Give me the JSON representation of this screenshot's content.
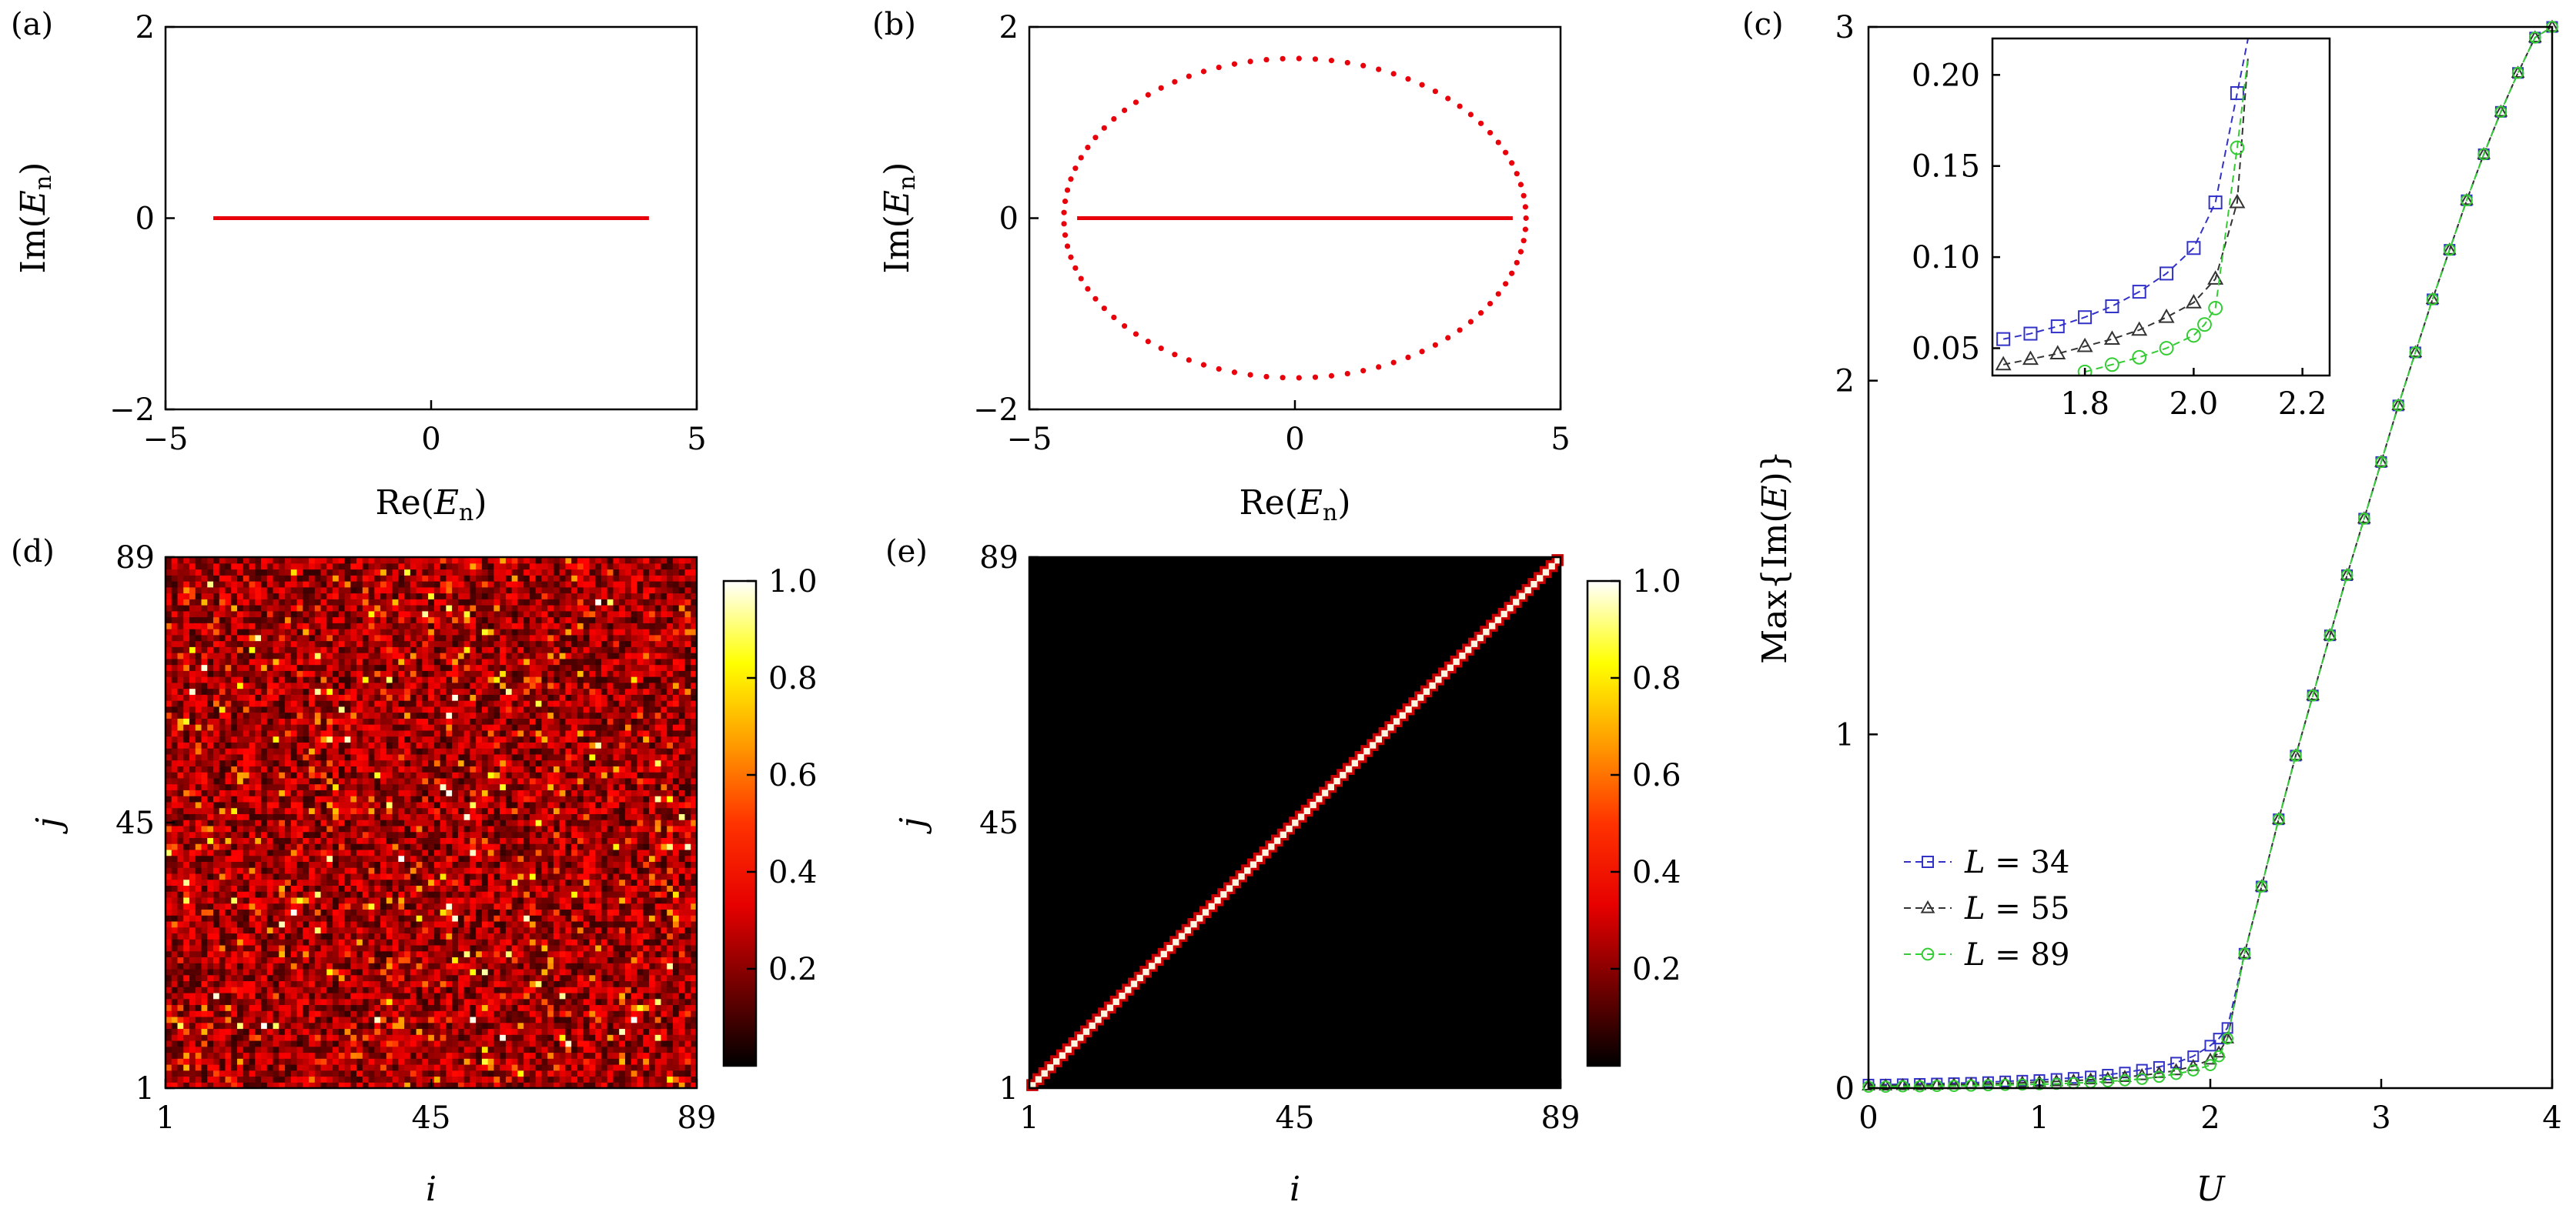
{
  "panel_labels": {
    "a": "(a)",
    "b": "(b)",
    "c": "(c)",
    "d": "(d)",
    "e": "(e)"
  },
  "colors": {
    "spectrum": "#e8000b",
    "L34": "#3232c8",
    "L55": "#333333",
    "L89": "#33cc33"
  },
  "chart_data": [
    {
      "id": "a",
      "type": "scatter",
      "xlabel": "Re(E_n)",
      "ylabel": "Im(E_n)",
      "xlim": [
        -5,
        5
      ],
      "ylim": [
        -2,
        2
      ],
      "xticks": [
        "−5",
        "0",
        "5"
      ],
      "yticks": [
        "−2",
        "0",
        "2"
      ],
      "line_segments": [
        {
          "x_start": -4.1,
          "x_end": 4.1,
          "y": 0
        }
      ]
    },
    {
      "id": "b",
      "type": "scatter",
      "xlabel": "Re(E_n)",
      "ylabel": "Im(E_n)",
      "xlim": [
        -5,
        5
      ],
      "ylim": [
        -2,
        2
      ],
      "xticks": [
        "−5",
        "0",
        "5"
      ],
      "yticks": [
        "−2",
        "0",
        "2"
      ],
      "line_segments": [
        {
          "x_start": -4.1,
          "x_end": 4.1,
          "y": 0
        }
      ],
      "ellipse": {
        "center_x": 0,
        "center_y": 0,
        "semi_axis_x": 4.35,
        "semi_axis_y": 1.67,
        "points": 89
      }
    },
    {
      "id": "c",
      "type": "line",
      "xlabel": "U",
      "ylabel": "Max{Im(E)}",
      "xlim": [
        0,
        4
      ],
      "ylim": [
        0,
        3
      ],
      "xticks": [
        "0",
        "1",
        "2",
        "3",
        "4"
      ],
      "yticks": [
        "0",
        "1",
        "2",
        "3"
      ],
      "legend_position": "lower-left",
      "series": [
        {
          "name": "L = 34",
          "marker": "square",
          "x": [
            0,
            0.1,
            0.2,
            0.3,
            0.4,
            0.5,
            0.6,
            0.7,
            0.8,
            0.9,
            1.0,
            1.1,
            1.2,
            1.3,
            1.4,
            1.5,
            1.6,
            1.7,
            1.8,
            1.9,
            2.0,
            2.05,
            2.1,
            2.2,
            2.3,
            2.4,
            2.5,
            2.6,
            2.7,
            2.8,
            2.9,
            3.0,
            3.1,
            3.2,
            3.3,
            3.4,
            3.5,
            3.6,
            3.7,
            3.8,
            3.9,
            4.0
          ],
          "y": [
            0.01,
            0.01,
            0.011,
            0.012,
            0.013,
            0.014,
            0.015,
            0.017,
            0.019,
            0.021,
            0.023,
            0.026,
            0.029,
            0.033,
            0.038,
            0.044,
            0.052,
            0.06,
            0.072,
            0.09,
            0.12,
            0.14,
            0.17,
            0.38,
            0.57,
            0.76,
            0.94,
            1.11,
            1.28,
            1.45,
            1.61,
            1.77,
            1.93,
            2.08,
            2.23,
            2.37,
            2.51,
            2.64,
            2.76,
            2.87,
            2.97,
            3.0
          ]
        },
        {
          "name": "L = 55",
          "marker": "triangle",
          "x": [
            0,
            0.1,
            0.2,
            0.3,
            0.4,
            0.5,
            0.6,
            0.7,
            0.8,
            0.9,
            1.0,
            1.1,
            1.2,
            1.3,
            1.4,
            1.5,
            1.6,
            1.7,
            1.8,
            1.9,
            2.0,
            2.05,
            2.1,
            2.2,
            2.3,
            2.4,
            2.5,
            2.6,
            2.7,
            2.8,
            2.9,
            3.0,
            3.1,
            3.2,
            3.3,
            3.4,
            3.5,
            3.6,
            3.7,
            3.8,
            3.9,
            4.0
          ],
          "y": [
            0.007,
            0.007,
            0.008,
            0.008,
            0.009,
            0.01,
            0.011,
            0.012,
            0.013,
            0.015,
            0.017,
            0.019,
            0.021,
            0.024,
            0.027,
            0.031,
            0.036,
            0.042,
            0.05,
            0.062,
            0.08,
            0.1,
            0.14,
            0.38,
            0.57,
            0.76,
            0.94,
            1.11,
            1.28,
            1.45,
            1.61,
            1.77,
            1.93,
            2.08,
            2.23,
            2.37,
            2.51,
            2.64,
            2.76,
            2.87,
            2.97,
            3.0
          ]
        },
        {
          "name": "L = 89",
          "marker": "circle",
          "x": [
            0,
            0.1,
            0.2,
            0.3,
            0.4,
            0.5,
            0.6,
            0.7,
            0.8,
            0.9,
            1.0,
            1.1,
            1.2,
            1.3,
            1.4,
            1.5,
            1.6,
            1.7,
            1.8,
            1.9,
            2.0,
            2.05,
            2.1,
            2.2,
            2.3,
            2.4,
            2.5,
            2.6,
            2.7,
            2.8,
            2.9,
            3.0,
            3.1,
            3.2,
            3.3,
            3.4,
            3.5,
            3.6,
            3.7,
            3.8,
            3.9,
            4.0
          ],
          "y": [
            0.004,
            0.004,
            0.005,
            0.005,
            0.006,
            0.006,
            0.007,
            0.008,
            0.009,
            0.01,
            0.011,
            0.012,
            0.014,
            0.016,
            0.019,
            0.022,
            0.026,
            0.032,
            0.04,
            0.05,
            0.065,
            0.09,
            0.14,
            0.38,
            0.57,
            0.76,
            0.94,
            1.11,
            1.28,
            1.45,
            1.61,
            1.77,
            1.93,
            2.08,
            2.23,
            2.37,
            2.51,
            2.64,
            2.76,
            2.87,
            2.97,
            3.0
          ]
        }
      ],
      "inset": {
        "xlim": [
          1.63,
          2.25
        ],
        "ylim": [
          0.035,
          0.22
        ],
        "xticks": [
          "1.8",
          "2.0",
          "2.2"
        ],
        "yticks": [
          "0.05",
          "0.10",
          "0.15",
          "0.20"
        ],
        "series": [
          {
            "name": "L = 34",
            "x": [
              1.65,
              1.7,
              1.75,
              1.8,
              1.85,
              1.9,
              1.95,
              2.0,
              2.04,
              2.08,
              2.1
            ],
            "y": [
              0.055,
              0.058,
              0.062,
              0.067,
              0.073,
              0.081,
              0.091,
              0.105,
              0.13,
              0.19,
              0.22
            ]
          },
          {
            "name": "L = 55",
            "x": [
              1.65,
              1.7,
              1.75,
              1.8,
              1.85,
              1.9,
              1.95,
              2.0,
              2.04,
              2.08,
              2.1
            ],
            "y": [
              0.041,
              0.044,
              0.047,
              0.051,
              0.055,
              0.06,
              0.067,
              0.075,
              0.088,
              0.13,
              0.21
            ]
          },
          {
            "name": "L = 89",
            "x": [
              1.8,
              1.85,
              1.9,
              1.95,
              2.0,
              2.02,
              2.04,
              2.08,
              2.1
            ],
            "y": [
              0.037,
              0.041,
              0.045,
              0.05,
              0.057,
              0.063,
              0.072,
              0.16,
              0.21
            ]
          }
        ]
      }
    },
    {
      "id": "d",
      "type": "heatmap",
      "xlabel": "i",
      "ylabel": "j",
      "xlim": [
        1,
        89
      ],
      "ylim": [
        1,
        89
      ],
      "xticks": [
        "1",
        "45",
        "89"
      ],
      "yticks": [
        "1",
        "45",
        "89"
      ],
      "colorbar_range": [
        0,
        1
      ],
      "colorbar_ticks": [
        "0.2",
        "0.4",
        "0.6",
        "0.8",
        "1.0"
      ],
      "pattern": "random correlation values, mostly 0.1 to 0.4, scattered bright points up to 1.0",
      "grid_size": 89
    },
    {
      "id": "e",
      "type": "heatmap",
      "xlabel": "i",
      "ylabel": "j",
      "xlim": [
        1,
        89
      ],
      "ylim": [
        1,
        89
      ],
      "xticks": [
        "1",
        "45",
        "89"
      ],
      "yticks": [
        "1",
        "45",
        "89"
      ],
      "colorbar_range": [
        0,
        1
      ],
      "colorbar_ticks": [
        "0.2",
        "0.4",
        "0.6",
        "0.8",
        "1.0"
      ],
      "pattern": "diagonal i = j equal to 1.0, zero elsewhere",
      "grid_size": 89
    }
  ]
}
